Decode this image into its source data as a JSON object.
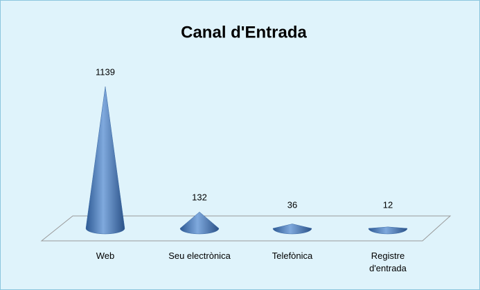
{
  "chart_data": {
    "type": "cone",
    "title": "Canal d'Entrada",
    "categories": [
      "Web",
      "Seu electrònica",
      "Telefònica",
      "Registre d'entrada"
    ],
    "values": [
      1139,
      132,
      36,
      12
    ],
    "color": "#4f81bd"
  }
}
